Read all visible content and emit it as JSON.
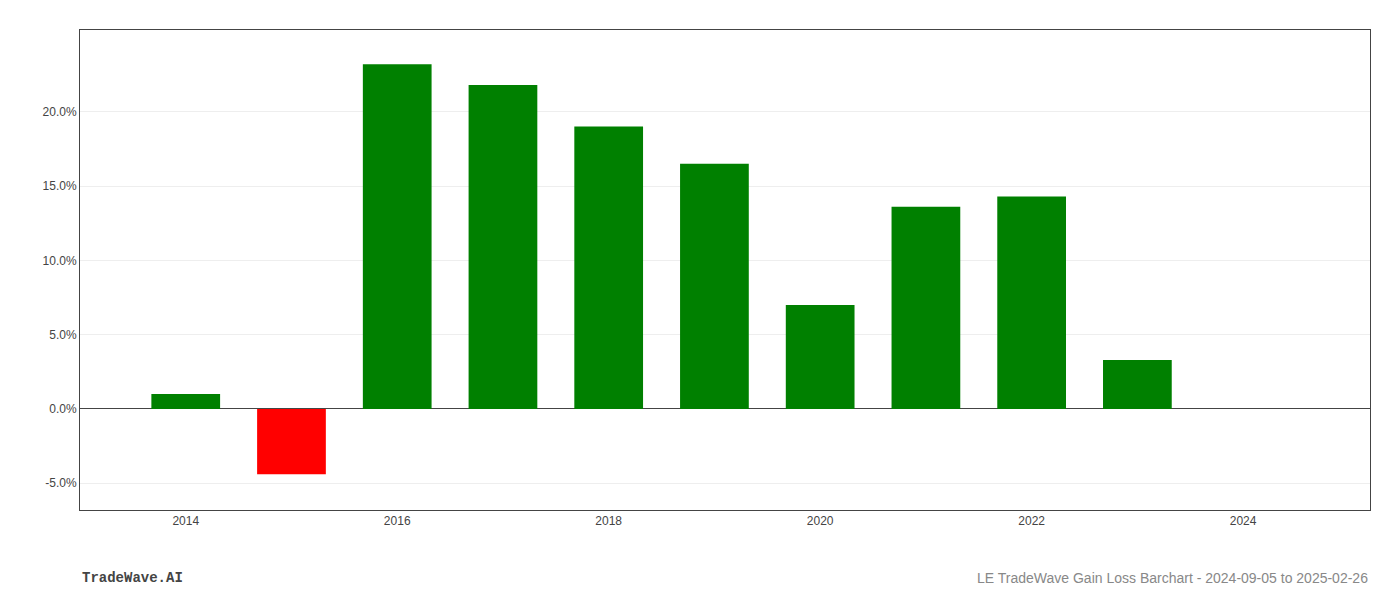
{
  "chart_data": {
    "type": "bar",
    "x": [
      2014,
      2015,
      2016,
      2017,
      2018,
      2019,
      2020,
      2021,
      2022,
      2023
    ],
    "values": [
      0.01,
      -0.044,
      0.232,
      0.218,
      0.19,
      0.165,
      0.07,
      0.136,
      0.143,
      0.033
    ],
    "colors": [
      "#008000",
      "#ff0000",
      "#008000",
      "#008000",
      "#008000",
      "#008000",
      "#008000",
      "#008000",
      "#008000",
      "#008000"
    ],
    "xlim": [
      2013.0,
      2025.2
    ],
    "xticks": [
      2014,
      2016,
      2018,
      2020,
      2022,
      2024
    ],
    "ylim": [
      -0.068,
      0.255
    ],
    "yticks": [
      {
        "value": -0.05,
        "label": "-5.0%"
      },
      {
        "value": 0.0,
        "label": "0.0%"
      },
      {
        "value": 0.05,
        "label": "5.0%"
      },
      {
        "value": 0.1,
        "label": "10.0%"
      },
      {
        "value": 0.15,
        "label": "15.0%"
      },
      {
        "value": 0.2,
        "label": "20.0%"
      }
    ],
    "grid": "y",
    "annotations": [
      "TradeWave.AI",
      "LE TradeWave Gain Loss Barchart - 2024-09-05 to 2025-02-26"
    ]
  }
}
